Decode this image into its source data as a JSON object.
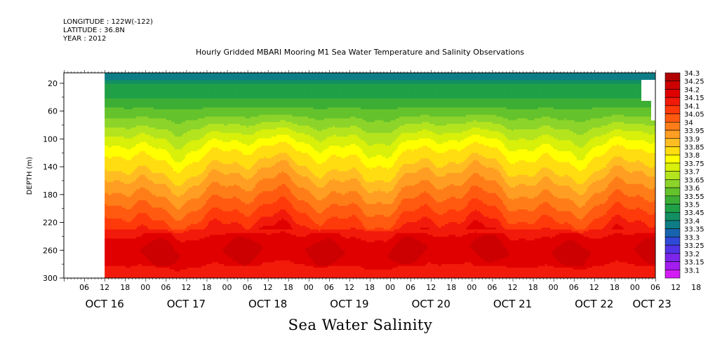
{
  "header": {
    "longitude": "LONGITUDE : 122W(-122)",
    "latitude": "LATITUDE : 36.8N",
    "year": "YEAR : 2012",
    "title": "Hourly Gridded MBARI Mooring M1 Sea Water Temperature and Salinity Observations"
  },
  "footer": {
    "variable_title": "Sea Water Salinity"
  },
  "chart_data": {
    "type": "heatmap",
    "title": "Hourly Gridded MBARI Mooring M1 Sea Water Temperature and Salinity Observations",
    "variable": "Sea Water Salinity",
    "ylabel": "DEPTH (m)",
    "ylim": [
      300,
      5
    ],
    "y_inverted": true,
    "y_ticks": [
      20,
      60,
      100,
      140,
      180,
      220,
      260,
      300
    ],
    "x_range_hours": [
      "2012-10-16 00:00",
      "2012-10-23 06:00"
    ],
    "hour_tick_labels": [
      "06",
      "12",
      "18",
      "00",
      "06",
      "12",
      "18",
      "00",
      "06",
      "12",
      "18",
      "00",
      "06",
      "12",
      "18",
      "00",
      "06",
      "12",
      "18",
      "00",
      "06",
      "12",
      "18",
      "00",
      "06",
      "12",
      "18",
      "00",
      "06",
      "12",
      "18",
      "00"
    ],
    "day_labels": [
      "OCT 16",
      "OCT 17",
      "OCT 18",
      "OCT 19",
      "OCT 20",
      "OCT 21",
      "OCT 22",
      "OCT 23"
    ],
    "data_start": "2012-10-16 12:00",
    "colorbar": {
      "levels": [
        "34.3",
        "34.25",
        "34.2",
        "34.15",
        "34.1",
        "34.05",
        "34",
        "33.95",
        "33.9",
        "33.85",
        "33.8",
        "33.75",
        "33.7",
        "33.65",
        "33.6",
        "33.55",
        "33.5",
        "33.45",
        "33.4",
        "33.35",
        "33.3",
        "33.25",
        "33.2",
        "33.15",
        "33.1"
      ],
      "colors": [
        "#b00000",
        "#cc0000",
        "#e00000",
        "#f21a0a",
        "#ff3a0a",
        "#ff5a10",
        "#ff7d18",
        "#ff9e22",
        "#ffbd22",
        "#ffdd10",
        "#ffff00",
        "#d8f00a",
        "#b4e41e",
        "#8cd42a",
        "#64c32c",
        "#3cae35",
        "#20a047",
        "#138f63",
        "#0e7d86",
        "#1863ad",
        "#2f49d8",
        "#5133e6",
        "#7d25ea",
        "#a31cf0",
        "#d31cf5"
      ]
    },
    "depth_profile_typical": {
      "depth_m": [
        10,
        20,
        40,
        60,
        80,
        100,
        120,
        140,
        160,
        180,
        200,
        220,
        240,
        260,
        280,
        300
      ],
      "salinity": [
        33.45,
        33.5,
        33.55,
        33.62,
        33.7,
        33.78,
        33.85,
        33.9,
        33.97,
        34.02,
        34.08,
        34.13,
        34.2,
        34.25,
        34.2,
        34.15
      ]
    }
  }
}
